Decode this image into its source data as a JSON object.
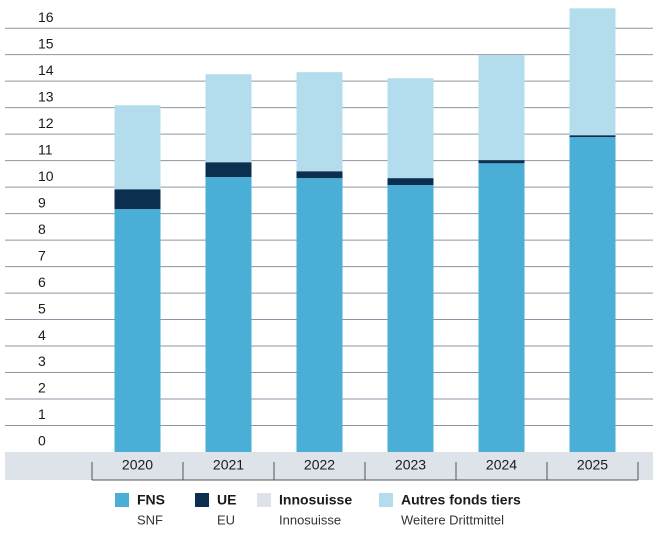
{
  "chart_data": {
    "type": "stacked_bar",
    "categories": [
      "2020",
      "2021",
      "2022",
      "2023",
      "2024",
      "2025"
    ],
    "series": [
      {
        "name": "FNS",
        "subtitle": "SNF",
        "color": "#4aaed6",
        "values": [
          9.17,
          10.38,
          10.34,
          10.08,
          10.9,
          11.89
        ]
      },
      {
        "name": "UE",
        "subtitle": "EU",
        "color": "#0d2f4f",
        "values": [
          0.75,
          0.56,
          0.26,
          0.26,
          0.12,
          0.07
        ]
      },
      {
        "name": "Innosuisse",
        "subtitle": "Innosuisse",
        "color": "#dde3e8",
        "values": [
          0,
          0,
          0,
          0,
          0,
          0
        ]
      },
      {
        "name": "Autres fonds tiers",
        "subtitle": "Weitere Drittmittel",
        "color": "#b3dcec",
        "values": [
          3.17,
          3.32,
          3.74,
          3.77,
          3.96,
          4.79
        ]
      }
    ],
    "ylim": [
      0,
      16.8
    ],
    "yticks": [
      0,
      1,
      2,
      3,
      4,
      5,
      6,
      7,
      8,
      9,
      10,
      11,
      12,
      13,
      14,
      15,
      16
    ],
    "grid": true
  }
}
